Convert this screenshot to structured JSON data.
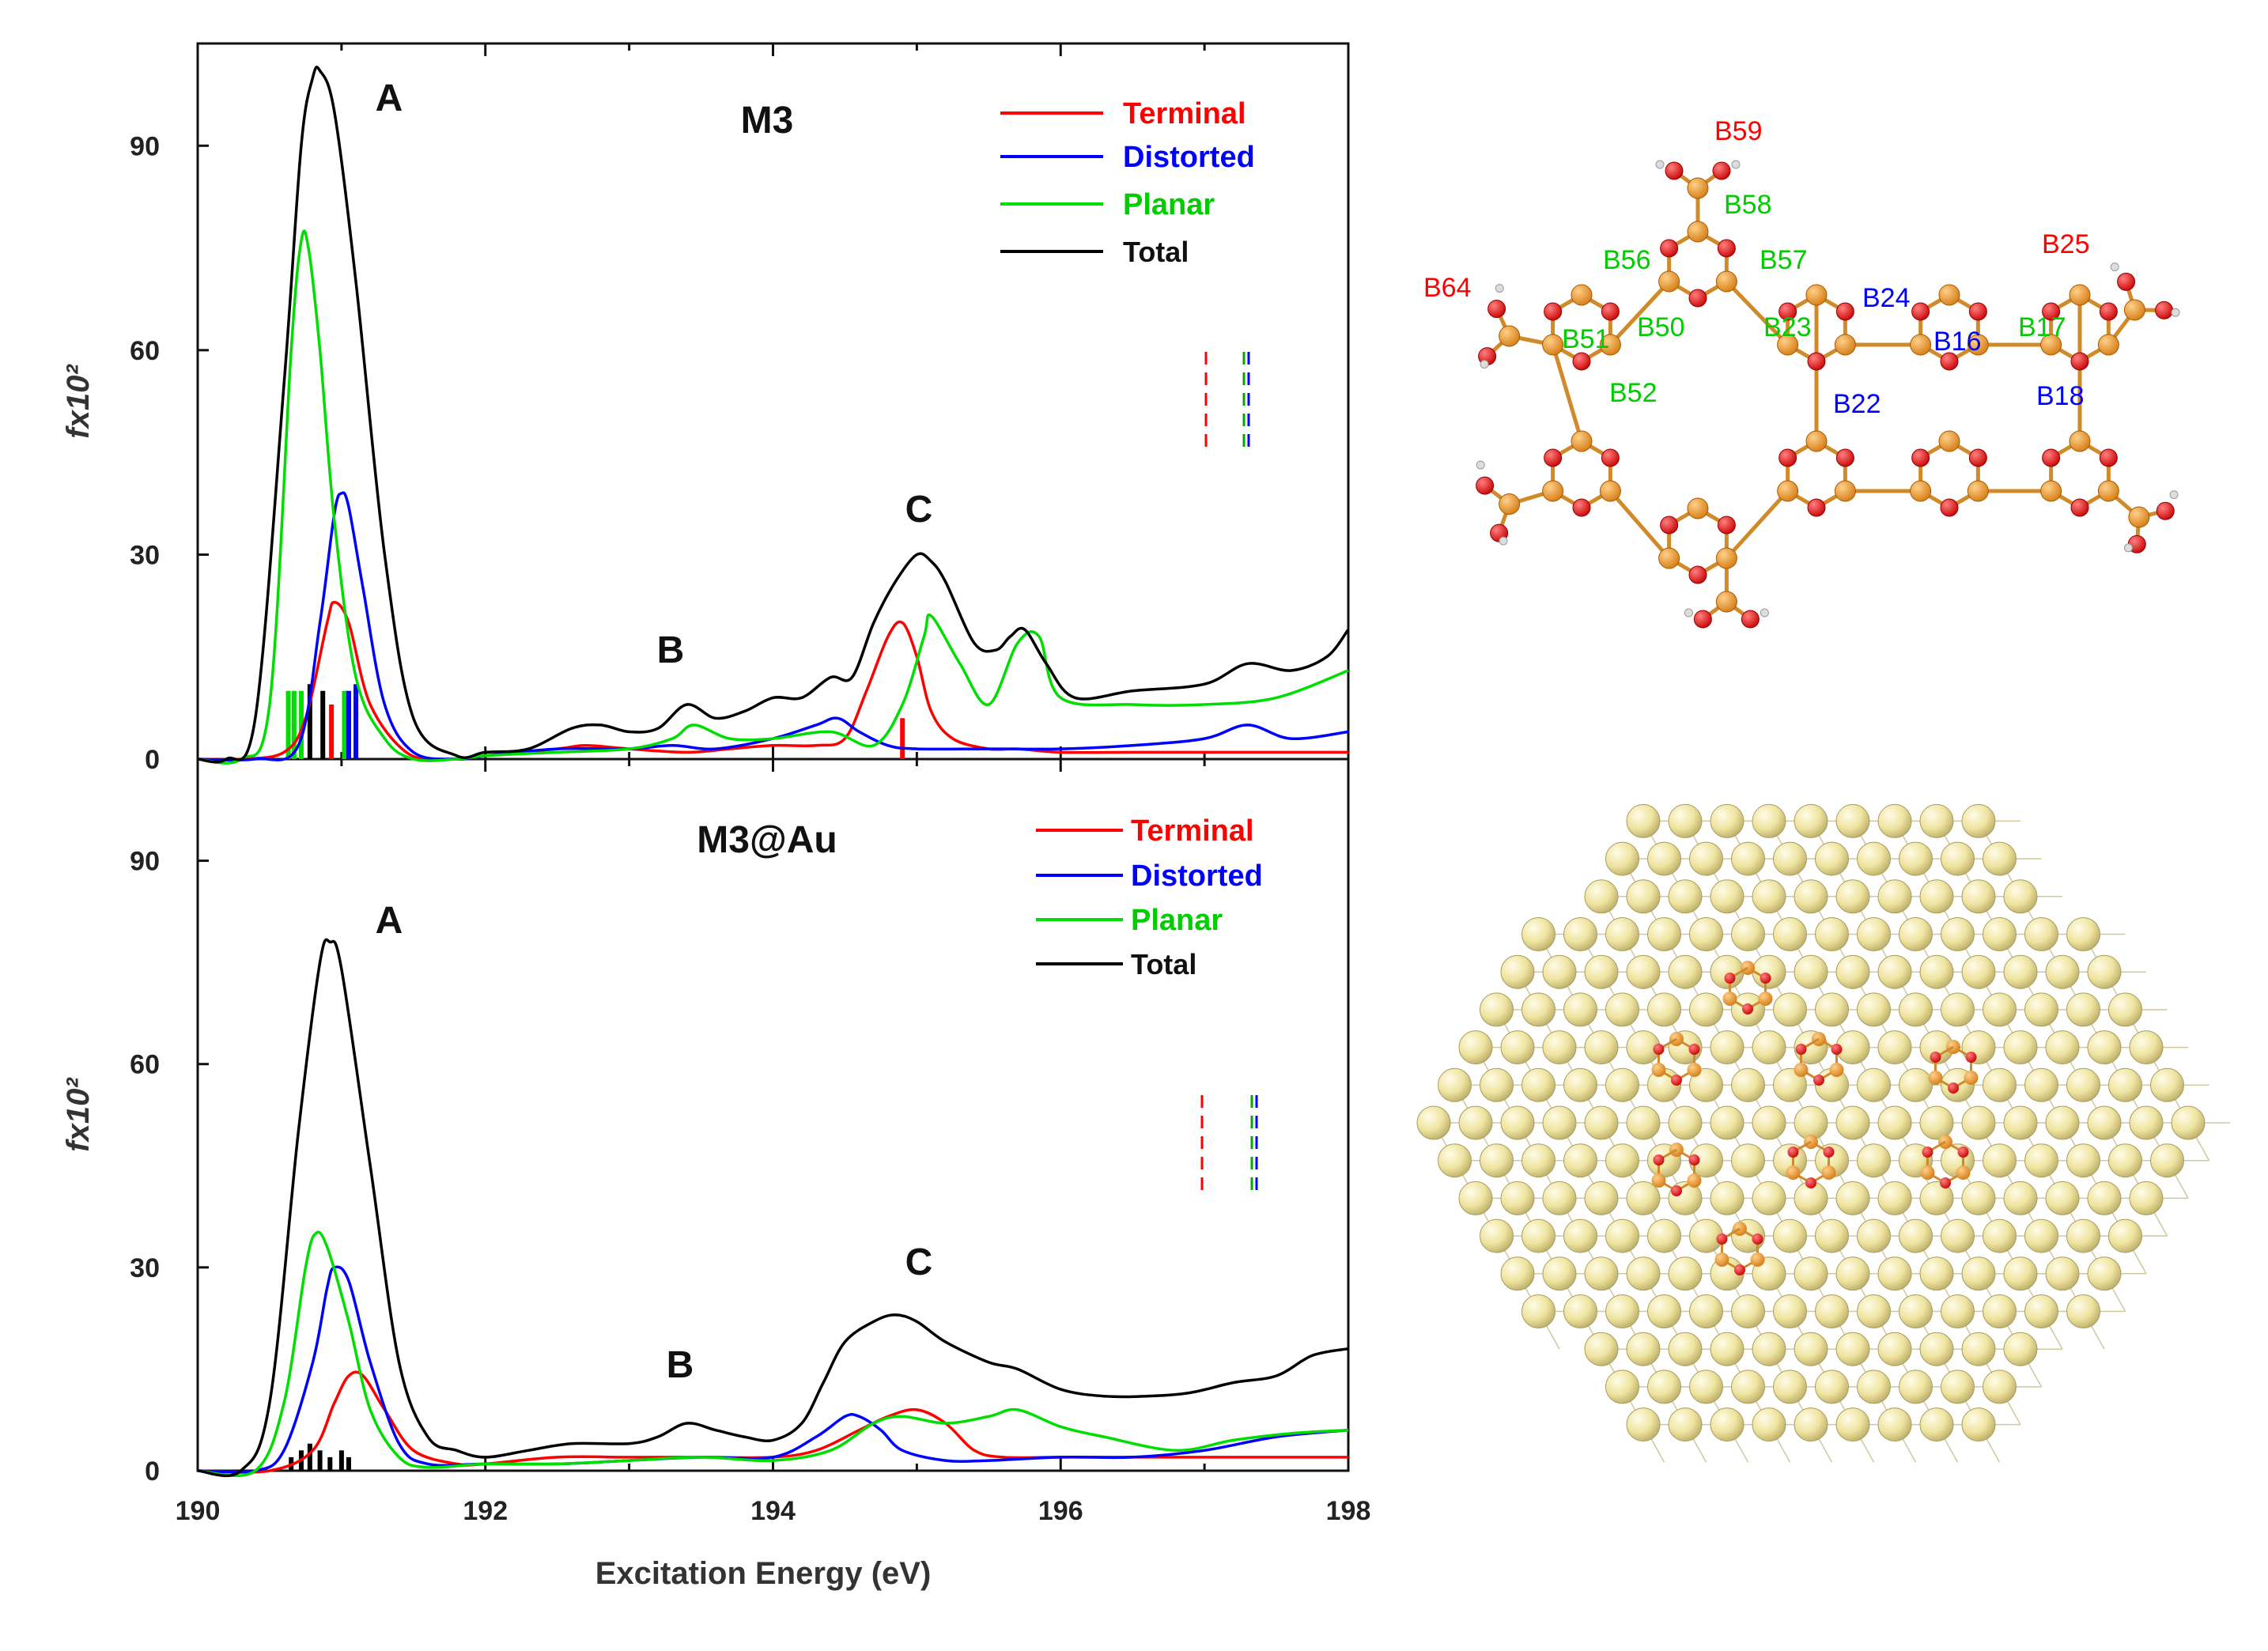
{
  "chart_data": [
    {
      "type": "line",
      "title": "M3",
      "xlabel": "Excitation Energy (eV)",
      "ylabel": "fx10²",
      "xlim": [
        190,
        198
      ],
      "ylim": [
        0,
        105
      ],
      "x_ticks": [
        "190",
        "192",
        "194",
        "196",
        "198"
      ],
      "y_ticks": [
        "0",
        "30",
        "60",
        "90"
      ],
      "legend": {
        "placement": "top-right",
        "entries": [
          "Terminal",
          "Distorted",
          "Planar",
          "Total"
        ]
      },
      "annotations": [
        "A",
        "B",
        "C"
      ],
      "series": [
        {
          "name": "Terminal",
          "color": "#ff0000",
          "x": [
            190.0,
            190.3,
            190.6,
            190.75,
            190.9,
            190.95,
            191.05,
            191.2,
            191.45,
            191.7,
            192.0,
            192.5,
            192.7,
            193.0,
            193.4,
            193.7,
            194.0,
            194.3,
            194.5,
            194.65,
            194.8,
            194.9,
            195.0,
            195.1,
            195.25,
            195.5,
            195.7,
            196.0,
            196.5,
            197.0,
            197.5,
            198.0
          ],
          "y": [
            0,
            0,
            1,
            6,
            20,
            23,
            20,
            8,
            1,
            0,
            0.5,
            1.5,
            2,
            1.5,
            1,
            1.5,
            2,
            2,
            3,
            10,
            18,
            20,
            15,
            7,
            3,
            1.5,
            1.5,
            1,
            1,
            1,
            1,
            1
          ]
        },
        {
          "name": "Distorted",
          "color": "#0000ff",
          "x": [
            190.0,
            190.4,
            190.7,
            190.85,
            190.95,
            191.0,
            191.05,
            191.15,
            191.3,
            191.5,
            191.8,
            192.0,
            192.5,
            193.0,
            193.3,
            193.6,
            194.0,
            194.3,
            194.45,
            194.6,
            194.8,
            195.0,
            195.5,
            196.0,
            196.5,
            197.0,
            197.3,
            197.6,
            198.0
          ],
          "y": [
            0,
            0,
            2,
            20,
            36,
            39,
            37,
            25,
            8,
            1,
            0,
            0.5,
            1.5,
            1.5,
            2,
            1.5,
            3,
            5,
            6,
            4,
            2,
            1.5,
            1.5,
            1.5,
            2,
            3,
            5,
            3,
            4
          ]
        },
        {
          "name": "Planar",
          "color": "#00dd00",
          "x": [
            190.0,
            190.3,
            190.5,
            190.65,
            190.72,
            190.77,
            190.85,
            190.95,
            191.1,
            191.3,
            191.5,
            191.8,
            192.0,
            192.5,
            193.0,
            193.3,
            193.45,
            193.7,
            194.0,
            194.4,
            194.7,
            194.9,
            195.05,
            195.1,
            195.3,
            195.5,
            195.7,
            195.85,
            196.0,
            196.5,
            197.0,
            197.5,
            198.0
          ],
          "y": [
            0,
            0,
            8,
            60,
            76,
            75,
            60,
            35,
            12,
            3,
            0,
            0,
            0.5,
            1,
            1.5,
            3,
            5,
            3,
            3,
            4,
            2,
            8,
            18,
            21,
            14,
            8,
            17,
            18,
            9,
            8,
            8,
            9,
            13
          ]
        },
        {
          "name": "Total",
          "color": "#000000",
          "x": [
            190.0,
            190.2,
            190.4,
            190.6,
            190.72,
            190.8,
            190.85,
            190.95,
            191.1,
            191.3,
            191.5,
            191.8,
            192.0,
            192.3,
            192.6,
            192.8,
            193.0,
            193.2,
            193.4,
            193.6,
            193.8,
            194.0,
            194.2,
            194.4,
            194.55,
            194.7,
            194.85,
            195.0,
            195.1,
            195.2,
            195.4,
            195.55,
            195.65,
            195.75,
            195.9,
            196.1,
            196.5,
            197.0,
            197.3,
            197.6,
            197.85,
            198.0
          ],
          "y": [
            0,
            0,
            6,
            55,
            90,
            100,
            101,
            95,
            70,
            30,
            6,
            0.5,
            1,
            1.5,
            4.5,
            5,
            4,
            4.5,
            8,
            6,
            7,
            9,
            9,
            12,
            12,
            20,
            26,
            30,
            29,
            26,
            17,
            16,
            18,
            19,
            14,
            9,
            10,
            11,
            14,
            13,
            15,
            19
          ]
        }
      ],
      "stick_spectrum": [
        {
          "series": "Planar",
          "x": [
            190.63,
            190.67,
            190.72,
            191.02
          ],
          "y": [
            10,
            10,
            10,
            10
          ]
        },
        {
          "series": "Total",
          "x": [
            190.78,
            190.87
          ],
          "y": [
            11,
            10
          ]
        },
        {
          "series": "Terminal",
          "x": [
            190.93,
            194.9
          ],
          "y": [
            8,
            6
          ]
        },
        {
          "series": "Distorted",
          "x": [
            191.05,
            191.1
          ],
          "y": [
            10,
            11
          ]
        }
      ]
    },
    {
      "type": "line",
      "title": "M3@Au",
      "xlabel": "Excitation Energy (eV)",
      "ylabel": "fx10²",
      "xlim": [
        190,
        198
      ],
      "ylim": [
        0,
        105
      ],
      "x_ticks": [
        "190",
        "192",
        "194",
        "196",
        "198"
      ],
      "y_ticks": [
        "0",
        "30",
        "60",
        "90"
      ],
      "legend": {
        "placement": "top-right",
        "entries": [
          "Terminal",
          "Distorted",
          "Planar",
          "Total"
        ]
      },
      "annotations": [
        "A",
        "B",
        "C"
      ],
      "series": [
        {
          "name": "Terminal",
          "color": "#ff0000",
          "x": [
            190.0,
            190.5,
            190.8,
            190.95,
            191.05,
            191.15,
            191.3,
            191.5,
            191.8,
            192.0,
            192.5,
            193.0,
            193.5,
            194.0,
            194.3,
            194.6,
            194.8,
            195.0,
            195.2,
            195.4,
            195.6,
            196.0,
            196.5,
            197.0,
            197.5,
            198.0
          ],
          "y": [
            0,
            0,
            3,
            10,
            14,
            14,
            9,
            3,
            1,
            1,
            2,
            2,
            2,
            2,
            3,
            6,
            8,
            9,
            7,
            3,
            2,
            2,
            2,
            2,
            2,
            2
          ]
        },
        {
          "name": "Distorted",
          "color": "#0000ff",
          "x": [
            190.0,
            190.4,
            190.6,
            190.8,
            190.9,
            190.95,
            191.05,
            191.2,
            191.4,
            191.6,
            192.0,
            192.5,
            193.0,
            193.5,
            194.0,
            194.3,
            194.5,
            194.6,
            194.75,
            194.9,
            195.2,
            195.5,
            196.0,
            196.5,
            197.0,
            197.5,
            198.0
          ],
          "y": [
            0,
            0,
            3,
            16,
            27,
            30,
            28,
            16,
            4,
            1,
            1,
            1,
            1.5,
            2,
            2,
            5,
            8,
            8,
            6,
            3,
            1.5,
            1.5,
            2,
            2,
            3,
            5,
            6
          ]
        },
        {
          "name": "Planar",
          "color": "#00dd00",
          "x": [
            190.0,
            190.4,
            190.6,
            190.75,
            190.82,
            190.9,
            191.05,
            191.2,
            191.4,
            191.6,
            192.0,
            192.5,
            193.0,
            193.5,
            194.0,
            194.4,
            194.7,
            194.9,
            195.2,
            195.5,
            195.7,
            196.0,
            196.3,
            196.8,
            197.2,
            197.6,
            198.0
          ],
          "y": [
            0,
            0,
            10,
            30,
            35,
            33,
            22,
            9,
            2,
            0.5,
            1,
            1,
            1.5,
            2,
            1.5,
            3,
            7,
            8,
            7,
            8,
            9,
            6.5,
            5,
            3,
            4.5,
            5.5,
            6
          ]
        },
        {
          "name": "Total",
          "color": "#000000",
          "x": [
            190.0,
            190.3,
            190.5,
            190.7,
            190.85,
            190.92,
            191.0,
            191.2,
            191.4,
            191.6,
            191.8,
            192.0,
            192.3,
            192.6,
            193.0,
            193.2,
            193.4,
            193.6,
            193.8,
            194.0,
            194.2,
            194.35,
            194.5,
            194.7,
            194.85,
            195.0,
            195.2,
            195.5,
            195.7,
            196.0,
            196.3,
            196.6,
            196.9,
            197.2,
            197.5,
            197.75,
            198.0
          ],
          "y": [
            0,
            0,
            10,
            50,
            75,
            78,
            74,
            45,
            16,
            5,
            3,
            2,
            3,
            4,
            4,
            5,
            7,
            6,
            5,
            4.5,
            7,
            13,
            19,
            22,
            23,
            22,
            19,
            16,
            15,
            12,
            11,
            11,
            11.5,
            13,
            14,
            17,
            18
          ]
        }
      ],
      "stick_spectrum": [
        {
          "series": "Total",
          "x": [
            190.65,
            190.72,
            190.78,
            190.85,
            190.92,
            191.0,
            191.05
          ],
          "y": [
            2,
            3,
            4,
            3,
            2,
            3,
            2
          ]
        }
      ]
    }
  ],
  "structure_top": {
    "atom_labels": [
      {
        "text": "B59",
        "color": "#ff0000"
      },
      {
        "text": "B58",
        "color": "#00cc00"
      },
      {
        "text": "B56",
        "color": "#00cc00"
      },
      {
        "text": "B57",
        "color": "#00cc00"
      },
      {
        "text": "B64",
        "color": "#ff0000"
      },
      {
        "text": "B50",
        "color": "#00cc00"
      },
      {
        "text": "B23",
        "color": "#00cc00"
      },
      {
        "text": "B24",
        "color": "#0000ff"
      },
      {
        "text": "B25",
        "color": "#ff0000"
      },
      {
        "text": "B51",
        "color": "#00cc00"
      },
      {
        "text": "B16",
        "color": "#0000ff"
      },
      {
        "text": "B17",
        "color": "#00cc00"
      },
      {
        "text": "B52",
        "color": "#00cc00"
      },
      {
        "text": "B22",
        "color": "#0000ff"
      },
      {
        "text": "B18",
        "color": "#0000ff"
      }
    ]
  },
  "colors": {
    "boron": "#e8921e",
    "oxygen": "#e81010",
    "hydrogen": "#dddddd",
    "gold": "#efe7a8",
    "bond": "#d08a2a"
  }
}
